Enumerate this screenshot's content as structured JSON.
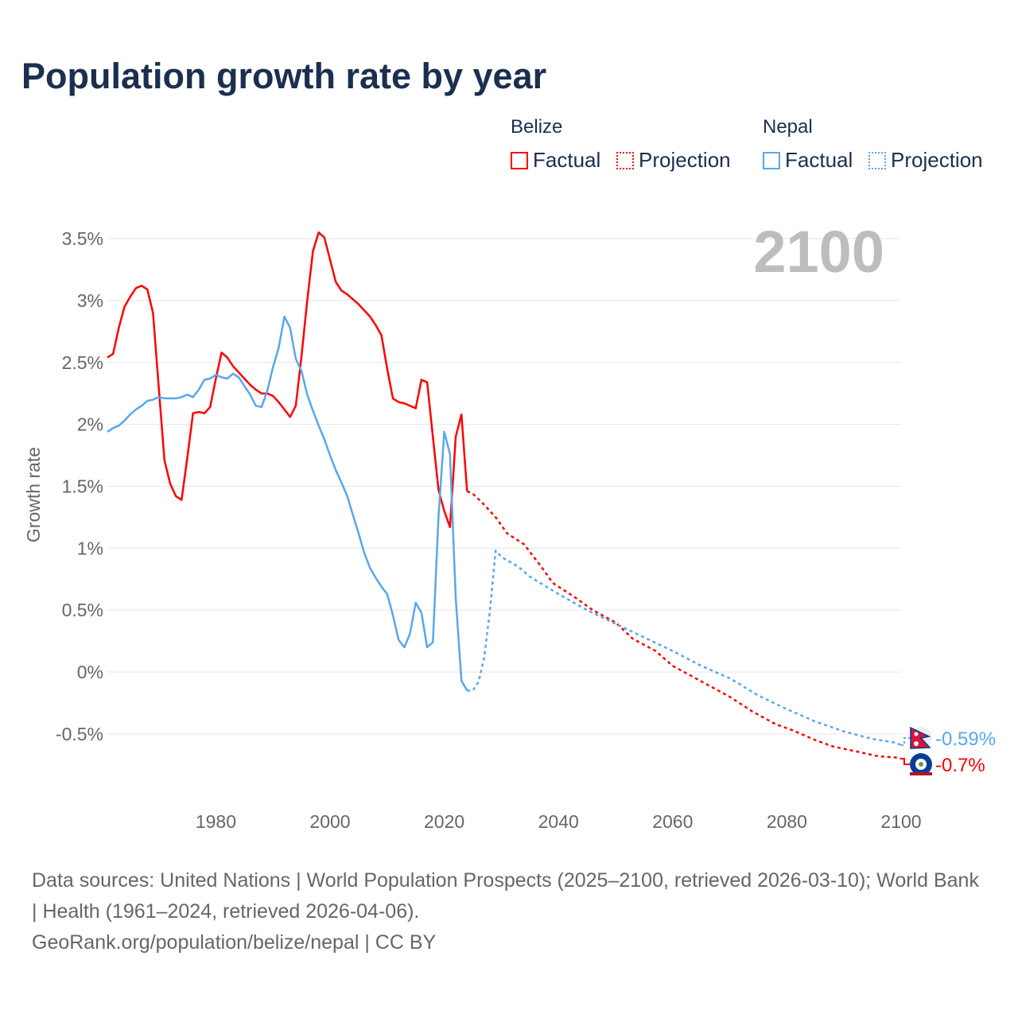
{
  "title": "Population growth rate by year",
  "legend": {
    "groups": [
      {
        "country": "Belize",
        "color": "#ff0000",
        "factual": "Factual",
        "projection": "Projection"
      },
      {
        "country": "Nepal",
        "color": "#5aa6ee",
        "factual": "Factual",
        "projection": "Projection"
      }
    ]
  },
  "footer": {
    "sources": "Data sources: United Nations | World Population Prospects (2025–2100, retrieved 2026-03-10); World Bank | Health (1961–2024, retrieved 2026-04-06).",
    "link": "GeoRank.org/population/belize/nepal | CC BY"
  },
  "chart_data": {
    "type": "line",
    "title": "Population growth rate by year",
    "ylabel": "Growth rate",
    "xlabel": "",
    "year_overlay": "2100",
    "xlim": [
      1961,
      2100
    ],
    "ylim": [
      -0.85,
      3.7
    ],
    "xticks": [
      1980,
      2000,
      2020,
      2040,
      2060,
      2080,
      2100
    ],
    "yticks": [
      -0.5,
      0,
      0.5,
      1,
      1.5,
      2,
      2.5,
      3,
      3.5
    ],
    "ytick_labels": [
      "-0.5%",
      "0%",
      "0.5%",
      "1%",
      "1.5%",
      "2%",
      "2.5%",
      "3%",
      "3.5%"
    ],
    "grid": true,
    "legend_position": "top-right",
    "series": [
      {
        "name": "Belize Factual",
        "country": "Belize",
        "kind": "factual",
        "color": "#ff0000",
        "x": [
          1961,
          1962,
          1963,
          1964,
          1965,
          1966,
          1967,
          1968,
          1969,
          1970,
          1971,
          1972,
          1973,
          1974,
          1975,
          1976,
          1977,
          1978,
          1979,
          1980,
          1981,
          1982,
          1983,
          1984,
          1985,
          1986,
          1987,
          1988,
          1989,
          1990,
          1991,
          1992,
          1993,
          1994,
          1995,
          1996,
          1997,
          1998,
          1999,
          2000,
          2001,
          2002,
          2003,
          2004,
          2005,
          2006,
          2007,
          2008,
          2009,
          2010,
          2011,
          2012,
          2013,
          2014,
          2015,
          2016,
          2017,
          2018,
          2019,
          2020,
          2021,
          2022,
          2023,
          2024
        ],
        "y": [
          2.54,
          2.57,
          2.78,
          2.95,
          3.03,
          3.1,
          3.12,
          3.09,
          2.9,
          2.3,
          1.71,
          1.52,
          1.42,
          1.39,
          1.73,
          2.09,
          2.1,
          2.09,
          2.14,
          2.37,
          2.58,
          2.54,
          2.47,
          2.42,
          2.37,
          2.32,
          2.28,
          2.25,
          2.25,
          2.23,
          2.18,
          2.12,
          2.06,
          2.15,
          2.55,
          3.0,
          3.4,
          3.55,
          3.51,
          3.33,
          3.15,
          3.08,
          3.05,
          3.01,
          2.97,
          2.92,
          2.87,
          2.8,
          2.72,
          2.45,
          2.21,
          2.18,
          2.17,
          2.15,
          2.13,
          2.36,
          2.34,
          1.9,
          1.47,
          1.3,
          1.17,
          1.9,
          2.08,
          1.46
        ]
      },
      {
        "name": "Belize Projection",
        "country": "Belize",
        "kind": "projection",
        "color": "#ff0000",
        "x": [
          2024,
          2025,
          2027,
          2029,
          2031,
          2034,
          2035,
          2037,
          2039,
          2043,
          2046,
          2050,
          2053,
          2057,
          2060,
          2066,
          2070,
          2074,
          2078,
          2081,
          2085,
          2088,
          2092,
          2096,
          2099,
          2100
        ],
        "y": [
          1.46,
          1.44,
          1.35,
          1.25,
          1.12,
          1.03,
          0.97,
          0.85,
          0.72,
          0.6,
          0.5,
          0.4,
          0.27,
          0.17,
          0.05,
          -0.1,
          -0.2,
          -0.32,
          -0.42,
          -0.47,
          -0.55,
          -0.6,
          -0.64,
          -0.68,
          -0.69,
          -0.7
        ],
        "end_label": "-0.7%"
      },
      {
        "name": "Nepal Factual",
        "country": "Nepal",
        "kind": "factual",
        "color": "#5aa6ee",
        "x": [
          1961,
          1962,
          1963,
          1964,
          1965,
          1966,
          1967,
          1968,
          1969,
          1970,
          1971,
          1972,
          1973,
          1974,
          1975,
          1976,
          1977,
          1978,
          1979,
          1980,
          1981,
          1982,
          1983,
          1984,
          1985,
          1986,
          1987,
          1988,
          1989,
          1990,
          1991,
          1992,
          1993,
          1994,
          1995,
          1996,
          1997,
          1998,
          1999,
          2000,
          2001,
          2002,
          2003,
          2004,
          2005,
          2006,
          2007,
          2008,
          2009,
          2010,
          2011,
          2012,
          2013,
          2014,
          2015,
          2016,
          2017,
          2018,
          2019,
          2020,
          2021,
          2022,
          2023,
          2024
        ],
        "y": [
          1.94,
          1.97,
          1.99,
          2.03,
          2.08,
          2.12,
          2.15,
          2.19,
          2.2,
          2.22,
          2.21,
          2.21,
          2.21,
          2.22,
          2.24,
          2.22,
          2.28,
          2.36,
          2.37,
          2.4,
          2.38,
          2.37,
          2.41,
          2.38,
          2.31,
          2.24,
          2.15,
          2.14,
          2.27,
          2.46,
          2.62,
          2.87,
          2.78,
          2.53,
          2.43,
          2.24,
          2.11,
          1.99,
          1.88,
          1.75,
          1.63,
          1.53,
          1.42,
          1.27,
          1.12,
          0.96,
          0.84,
          0.76,
          0.69,
          0.63,
          0.46,
          0.26,
          0.2,
          0.31,
          0.56,
          0.48,
          0.2,
          0.24,
          1.26,
          1.94,
          1.76,
          0.6,
          -0.07,
          -0.15
        ]
      },
      {
        "name": "Nepal Projection",
        "country": "Nepal",
        "kind": "projection",
        "color": "#5aa6ee",
        "x": [
          2024,
          2025,
          2026,
          2027,
          2028,
          2029,
          2030,
          2033,
          2035,
          2040,
          2045,
          2050,
          2055,
          2060,
          2065,
          2070,
          2075,
          2080,
          2085,
          2090,
          2095,
          2099,
          2100
        ],
        "y": [
          -0.15,
          -0.15,
          -0.08,
          0.12,
          0.5,
          0.98,
          0.93,
          0.85,
          0.77,
          0.63,
          0.5,
          0.39,
          0.28,
          0.17,
          0.05,
          -0.05,
          -0.19,
          -0.3,
          -0.4,
          -0.48,
          -0.54,
          -0.57,
          -0.59
        ],
        "end_label": "-0.59%"
      }
    ]
  }
}
